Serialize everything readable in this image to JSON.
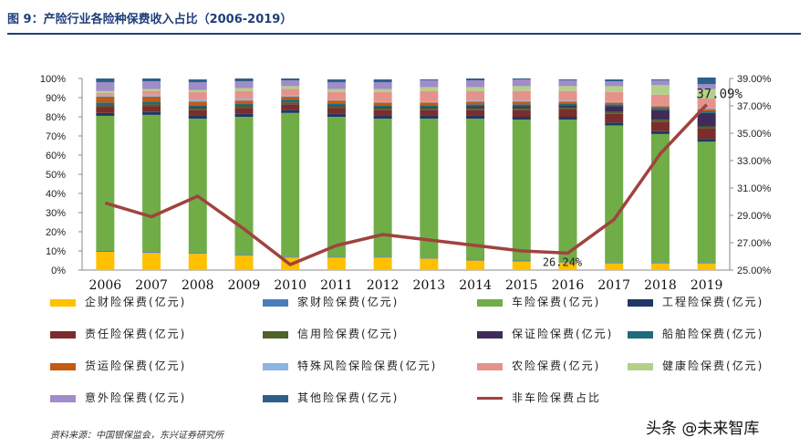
{
  "figure": {
    "title": "图 9：产险行业各险种保费收入占比（2006-2019）",
    "source": "资料来源：中国银保监会，东兴证券研究所",
    "watermark": "头条 @未来智库"
  },
  "chart_data": {
    "type": "bar",
    "stacked": true,
    "categories": [
      "2006",
      "2007",
      "2008",
      "2009",
      "2010",
      "2011",
      "2012",
      "2013",
      "2014",
      "2015",
      "2016",
      "2017",
      "2018",
      "2019"
    ],
    "left_axis": {
      "ylim": [
        0,
        100
      ],
      "ticks": [
        "0%",
        "10%",
        "20%",
        "30%",
        "40%",
        "50%",
        "60%",
        "70%",
        "80%",
        "90%",
        "100%"
      ]
    },
    "right_axis": {
      "ylim": [
        25,
        39
      ],
      "ticks": [
        "25.00%",
        "27.00%",
        "29.00%",
        "31.00%",
        "33.00%",
        "35.00%",
        "37.00%",
        "39.00%"
      ]
    },
    "grid": false,
    "legend_position": "bottom",
    "series": [
      {
        "name": "企财险保费(亿元)",
        "color": "#ffc000",
        "values": [
          9.5,
          9,
          8.5,
          7.5,
          6.5,
          6.5,
          6.5,
          6,
          5,
          4.5,
          4,
          3.5,
          3.5,
          3.5
        ]
      },
      {
        "name": "家财险保费(亿元)",
        "color": "#4a7ebb",
        "values": [
          0.5,
          0.5,
          0.5,
          0.5,
          0.5,
          0.5,
          0.5,
          0.5,
          0.5,
          0.5,
          0.5,
          0.5,
          0.5,
          0.5
        ]
      },
      {
        "name": "车险保费(亿元)",
        "color": "#70ad47",
        "values": [
          70.5,
          71.5,
          70,
          72,
          75,
          73,
          72,
          72.5,
          73.5,
          73.5,
          74,
          71.5,
          67,
          63
        ]
      },
      {
        "name": "工程险保费(亿元)",
        "color": "#1f3864",
        "values": [
          1.5,
          1.5,
          1.5,
          1.5,
          1.5,
          1.5,
          1.5,
          1.5,
          1.5,
          1.5,
          1.5,
          1.5,
          1.5,
          1.5
        ]
      },
      {
        "name": "责任险保费(亿元)",
        "color": "#7b2c2c",
        "values": [
          3,
          3,
          3,
          3,
          3,
          3,
          3,
          3,
          3,
          3.5,
          4,
          4.5,
          5,
          5.5
        ]
      },
      {
        "name": "信用险保费(亿元)",
        "color": "#4f6228",
        "values": [
          1,
          1,
          1,
          1,
          1,
          1,
          1,
          1,
          1,
          1,
          1,
          1,
          1,
          1
        ]
      },
      {
        "name": "保证险保费(亿元)",
        "color": "#3f2b5a",
        "values": [
          0.5,
          0.5,
          0.5,
          0.5,
          0.5,
          0.5,
          0.5,
          0.5,
          1,
          1,
          1,
          3,
          5,
          7
        ]
      },
      {
        "name": "船舶险保费(亿元)",
        "color": "#1e6b7a",
        "values": [
          1,
          1,
          1,
          1,
          1,
          1,
          1,
          1,
          1,
          1,
          1,
          1,
          1,
          1
        ]
      },
      {
        "name": "货运险保费(亿元)",
        "color": "#c55a11",
        "values": [
          3,
          2.5,
          2,
          1.5,
          1.5,
          1.5,
          1.5,
          1.5,
          1.5,
          1.5,
          1,
          1,
          1,
          1
        ]
      },
      {
        "name": "特殊风险保险保费(亿元)",
        "color": "#8db4e2",
        "values": [
          1,
          1,
          1,
          1,
          0.5,
          0.5,
          0.5,
          0.5,
          0.5,
          0.5,
          0.5,
          0.5,
          0.5,
          0.5
        ]
      },
      {
        "name": "农险保费(亿元)",
        "color": "#e6928c",
        "values": [
          1,
          2,
          4,
          4,
          3.5,
          4,
          5,
          5.5,
          5,
          5,
          5,
          5,
          5.5,
          5
        ]
      },
      {
        "name": "健康险保费(亿元)",
        "color": "#b3d08a",
        "values": [
          1,
          1,
          1,
          1.5,
          1.5,
          1.5,
          1.5,
          2,
          2,
          2.5,
          2.5,
          3,
          5,
          5
        ]
      },
      {
        "name": "意外险保费(亿元)",
        "color": "#a08cc8",
        "values": [
          4.5,
          4,
          4,
          3.5,
          3,
          3.5,
          3.5,
          3.5,
          3.5,
          3.5,
          3,
          2.5,
          2.5,
          2.5
        ]
      },
      {
        "name": "其他险保费(亿元)",
        "color": "#2e5f8a",
        "values": [
          2,
          1.5,
          1.5,
          1.5,
          1,
          1.5,
          1.5,
          0.5,
          1,
          0.5,
          0.5,
          1,
          0.5,
          3.5
        ]
      }
    ],
    "line_series": {
      "name": "非车险保费占比",
      "color": "#a0433f",
      "axis": "right",
      "values": [
        29.9,
        28.9,
        30.4,
        28,
        25.4,
        26.8,
        27.6,
        27.2,
        26.8,
        26.4,
        26.24,
        28.7,
        33.5,
        37.09
      ]
    },
    "annotations": [
      {
        "category": "2016",
        "text": "26.24%"
      },
      {
        "category": "2019",
        "text": "37.09%"
      }
    ]
  }
}
